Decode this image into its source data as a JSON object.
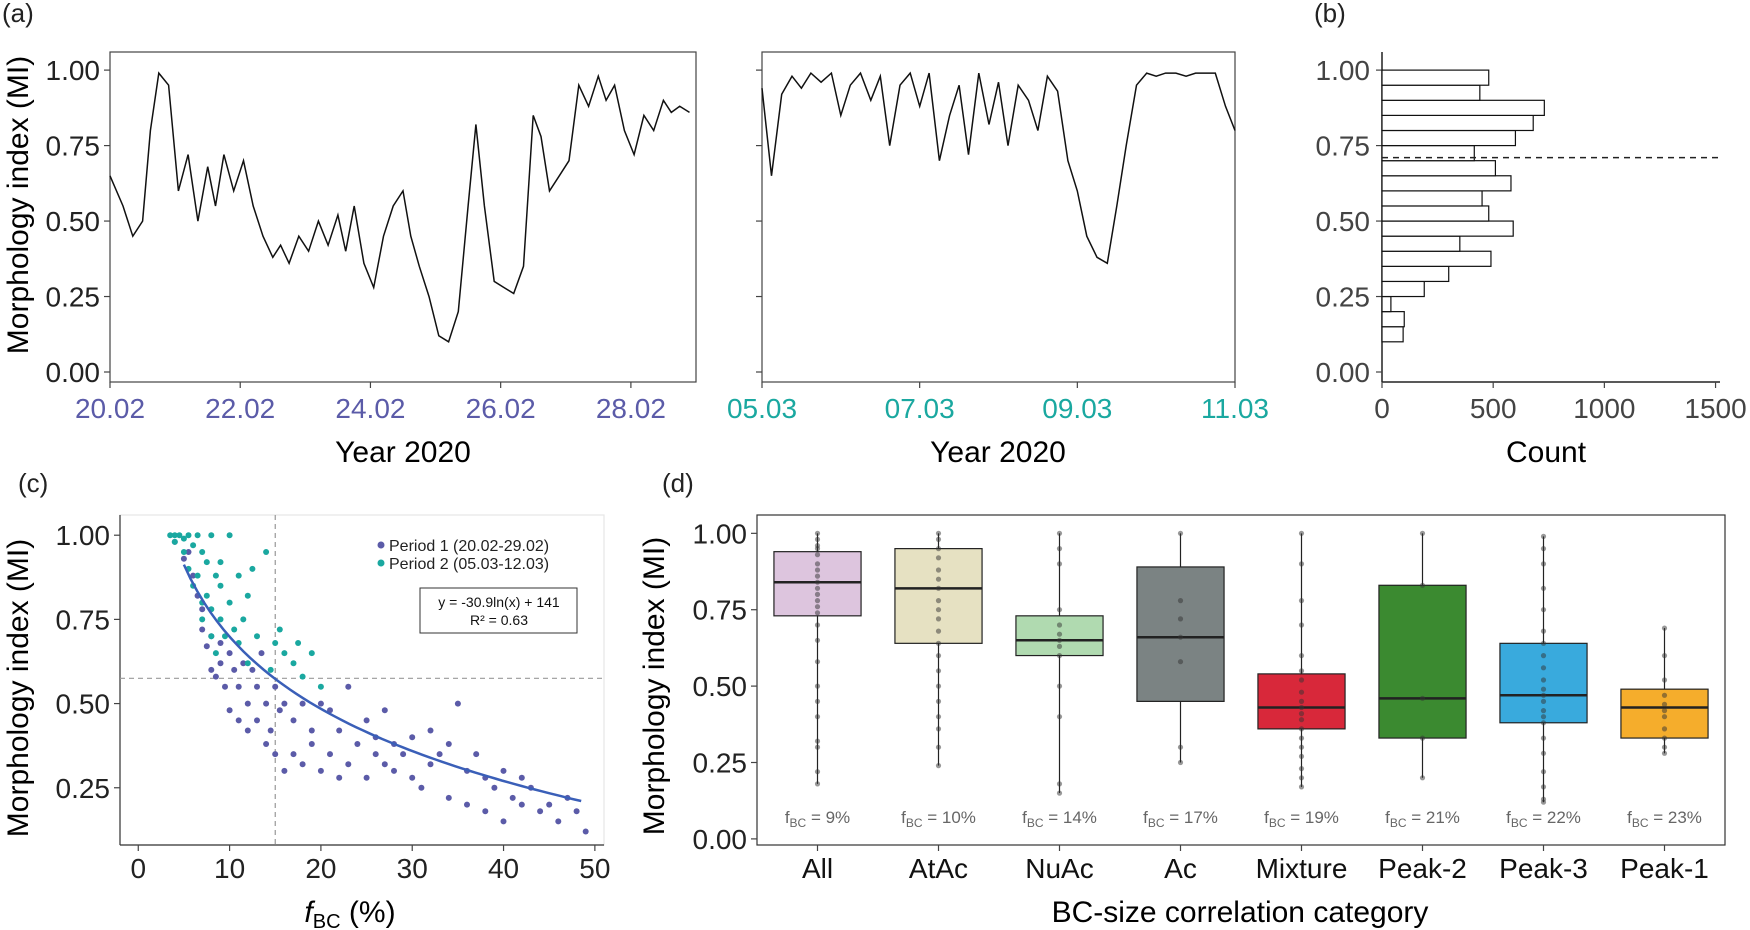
{
  "figure": {
    "panel_a_label": "(a)",
    "panel_b_label": "(b)",
    "panel_c_label": "(c)",
    "panel_d_label": "(d)"
  },
  "colors": {
    "period1": "#5b5ba8",
    "period2": "#1aa8a0",
    "fit": "#3a5fb8",
    "axis": "#000000",
    "tick": "#444444",
    "box_all": "#ddc5de",
    "box_atac": "#e6e1c2",
    "box_nuac": "#b0dab0",
    "box_ac": "#7b8383",
    "box_mixture": "#d8283a",
    "box_peak2": "#3b8a30",
    "box_peak3": "#39aadd",
    "box_peak1": "#f5ad2c"
  },
  "chart_data": [
    {
      "panel": "a-left",
      "type": "line",
      "ylabel": "Morphology index (MI)",
      "xlabel": "Year 2020",
      "ylim": [
        0,
        1.06
      ],
      "yticks": [
        "0.00",
        "0.25",
        "0.50",
        "0.75",
        "1.00"
      ],
      "yticks_values": [
        0,
        0.25,
        0.5,
        0.75,
        1.0
      ],
      "xticks": [
        "20.02",
        "22.02",
        "24.02",
        "26.02",
        "28.02"
      ],
      "xticks_values": [
        0,
        2,
        4,
        6,
        8
      ],
      "xlim": [
        0,
        9
      ],
      "x": [
        0,
        0.2,
        0.35,
        0.5,
        0.62,
        0.75,
        0.9,
        1.05,
        1.2,
        1.35,
        1.5,
        1.62,
        1.75,
        1.9,
        2.05,
        2.2,
        2.35,
        2.5,
        2.62,
        2.75,
        2.9,
        3.05,
        3.2,
        3.35,
        3.5,
        3.62,
        3.75,
        3.9,
        4.05,
        4.2,
        4.35,
        4.5,
        4.62,
        4.75,
        4.9,
        5.05,
        5.2,
        5.35,
        5.5,
        5.62,
        5.75,
        5.9,
        6.05,
        6.2,
        6.35,
        6.5,
        6.62,
        6.75,
        6.9,
        7.05,
        7.2,
        7.35,
        7.5,
        7.62,
        7.75,
        7.9,
        8.05,
        8.2,
        8.35,
        8.5,
        8.62,
        8.75,
        8.9
      ],
      "y": [
        0.65,
        0.55,
        0.45,
        0.5,
        0.8,
        0.99,
        0.95,
        0.6,
        0.72,
        0.5,
        0.68,
        0.55,
        0.72,
        0.6,
        0.7,
        0.55,
        0.45,
        0.38,
        0.42,
        0.36,
        0.45,
        0.4,
        0.5,
        0.42,
        0.52,
        0.4,
        0.55,
        0.36,
        0.28,
        0.45,
        0.55,
        0.6,
        0.45,
        0.35,
        0.25,
        0.12,
        0.1,
        0.2,
        0.55,
        0.82,
        0.55,
        0.3,
        0.28,
        0.26,
        0.35,
        0.85,
        0.78,
        0.6,
        0.65,
        0.7,
        0.95,
        0.88,
        0.98,
        0.9,
        0.95,
        0.8,
        0.72,
        0.85,
        0.8,
        0.9,
        0.86,
        0.88,
        0.86
      ]
    },
    {
      "panel": "a-right",
      "type": "line",
      "xlabel": "Year 2020",
      "xticks": [
        "05.03",
        "07.03",
        "09.03",
        "11.03"
      ],
      "xticks_values": [
        0,
        2,
        4,
        6
      ],
      "xlim": [
        0,
        6
      ],
      "ylim": [
        0,
        1.06
      ],
      "x": [
        0,
        0.12,
        0.25,
        0.38,
        0.5,
        0.62,
        0.75,
        0.88,
        1.0,
        1.12,
        1.25,
        1.38,
        1.5,
        1.62,
        1.75,
        1.88,
        2.0,
        2.12,
        2.25,
        2.38,
        2.5,
        2.62,
        2.75,
        2.88,
        3.0,
        3.12,
        3.25,
        3.38,
        3.5,
        3.62,
        3.75,
        3.88,
        4.0,
        4.12,
        4.25,
        4.38,
        4.5,
        4.62,
        4.75,
        4.88,
        5.0,
        5.12,
        5.25,
        5.38,
        5.5,
        5.62,
        5.75,
        5.88,
        6.0
      ],
      "y": [
        0.94,
        0.65,
        0.92,
        0.98,
        0.94,
        0.99,
        0.96,
        0.99,
        0.85,
        0.95,
        0.99,
        0.9,
        0.98,
        0.75,
        0.95,
        0.99,
        0.88,
        0.99,
        0.7,
        0.85,
        0.95,
        0.72,
        0.99,
        0.82,
        0.96,
        0.75,
        0.95,
        0.9,
        0.8,
        0.98,
        0.93,
        0.7,
        0.6,
        0.45,
        0.38,
        0.36,
        0.55,
        0.75,
        0.95,
        0.99,
        0.98,
        0.99,
        0.99,
        0.98,
        0.99,
        0.99,
        0.99,
        0.88,
        0.8
      ]
    },
    {
      "panel": "b",
      "type": "bar",
      "orientation": "horizontal",
      "xlabel": "Count",
      "xticks": [
        "0",
        "500",
        "1000",
        "1500"
      ],
      "xticks_values": [
        0,
        500,
        1000,
        1500
      ],
      "xlim": [
        0,
        1520
      ],
      "ylim": [
        0,
        1.06
      ],
      "yticks": [
        "0.00",
        "0.25",
        "0.50",
        "0.75",
        "1.00"
      ],
      "yticks_values": [
        0,
        0.25,
        0.5,
        0.75,
        1.0
      ],
      "bin_width": 0.05,
      "bin_centers": [
        0.125,
        0.175,
        0.225,
        0.275,
        0.325,
        0.375,
        0.425,
        0.475,
        0.525,
        0.575,
        0.625,
        0.675,
        0.725,
        0.775,
        0.825,
        0.875,
        0.925,
        0.975
      ],
      "counts": [
        95,
        100,
        40,
        190,
        300,
        490,
        350,
        590,
        480,
        450,
        580,
        510,
        415,
        600,
        680,
        730,
        440,
        480
      ],
      "threshold": 0.71
    },
    {
      "panel": "c",
      "type": "scatter",
      "xlabel": "f",
      "xlabel_sub": "BC",
      "xlabel_unit": " (%)",
      "ylabel": "Morphology index (MI)",
      "xlim": [
        -2,
        51
      ],
      "ylim": [
        0.08,
        1.06
      ],
      "xticks": [
        "0",
        "10",
        "20",
        "30",
        "40",
        "50"
      ],
      "xticks_values": [
        0,
        10,
        20,
        30,
        40,
        50
      ],
      "yticks": [
        "0.25",
        "0.50",
        "0.75",
        "1.00"
      ],
      "yticks_values": [
        0.25,
        0.5,
        0.75,
        1.0
      ],
      "ref_x": 15,
      "ref_y": 0.575,
      "legend": [
        "Period 1 (20.02-29.02)",
        "Period 2 (05.03-12.03)"
      ],
      "fit_equation": "y = -30.9ln(x) + 141",
      "fit_r2": "R² = 0.63",
      "fit": {
        "a": -30.9,
        "b": 141,
        "x_from": 5,
        "x_to": 48.5
      },
      "series": [
        {
          "name": "Period 1 (20.02-29.02)",
          "x": [
            4,
            5,
            5.5,
            6,
            6.5,
            7,
            7,
            7.5,
            8,
            8,
            8.5,
            9,
            9,
            9.5,
            10,
            10,
            10.5,
            11,
            11,
            11.5,
            12,
            12,
            12.5,
            13,
            13,
            13.5,
            14,
            14,
            14.5,
            15,
            15,
            15.5,
            16,
            16,
            17,
            17,
            18,
            18,
            19,
            19,
            20,
            20,
            21,
            21,
            22,
            22,
            23,
            23,
            24,
            25,
            25,
            26,
            26,
            27,
            27,
            28,
            28,
            29,
            30,
            30,
            31,
            32,
            32,
            33,
            34,
            34,
            35,
            36,
            36,
            37,
            38,
            38,
            39,
            40,
            40,
            41,
            42,
            42,
            43,
            44,
            45,
            46,
            47,
            48,
            49
          ],
          "y": [
            0.98,
            0.93,
            0.95,
            0.88,
            0.82,
            0.78,
            0.72,
            0.67,
            0.6,
            0.7,
            0.58,
            0.62,
            0.68,
            0.55,
            0.48,
            0.65,
            0.6,
            0.45,
            0.55,
            0.62,
            0.5,
            0.42,
            0.6,
            0.55,
            0.45,
            0.65,
            0.5,
            0.38,
            0.42,
            0.55,
            0.35,
            0.48,
            0.5,
            0.3,
            0.45,
            0.35,
            0.5,
            0.32,
            0.42,
            0.38,
            0.5,
            0.3,
            0.48,
            0.35,
            0.42,
            0.28,
            0.55,
            0.32,
            0.38,
            0.45,
            0.28,
            0.4,
            0.35,
            0.32,
            0.48,
            0.38,
            0.3,
            0.35,
            0.4,
            0.28,
            0.25,
            0.42,
            0.32,
            0.35,
            0.22,
            0.38,
            0.5,
            0.3,
            0.2,
            0.35,
            0.28,
            0.18,
            0.25,
            0.3,
            0.15,
            0.22,
            0.28,
            0.2,
            0.25,
            0.18,
            0.2,
            0.15,
            0.22,
            0.18,
            0.12
          ]
        },
        {
          "name": "Period 2 (05.03-12.03)",
          "x": [
            3.5,
            4,
            4,
            4.5,
            5,
            5,
            5.5,
            5.5,
            6,
            6,
            6.5,
            6.5,
            7,
            7,
            7,
            7.5,
            7.5,
            8,
            8,
            8,
            8.5,
            8.5,
            9,
            9,
            9,
            9.5,
            10,
            10,
            10.5,
            11,
            11,
            11.5,
            12,
            12,
            12.5,
            13,
            14,
            14.5,
            15,
            15.5,
            16,
            17,
            17.5,
            18,
            19,
            20
          ],
          "y": [
            1.0,
            1.0,
            0.98,
            1.0,
            0.99,
            0.95,
            1.0,
            0.9,
            0.97,
            0.85,
            1.0,
            0.88,
            0.95,
            0.8,
            0.75,
            0.92,
            0.82,
            1.0,
            0.78,
            0.7,
            0.88,
            0.65,
            0.92,
            0.75,
            0.85,
            0.7,
            1.0,
            0.8,
            0.72,
            0.88,
            0.68,
            0.75,
            0.82,
            0.62,
            0.9,
            0.7,
            0.95,
            0.6,
            0.68,
            0.72,
            0.65,
            0.62,
            0.68,
            0.58,
            0.65,
            0.55
          ]
        }
      ]
    },
    {
      "panel": "d",
      "type": "box",
      "xlabel": "BC-size correlation category",
      "ylabel": "Morphology index (MI)",
      "ylim": [
        -0.02,
        1.06
      ],
      "yticks": [
        "0.00",
        "0.25",
        "0.50",
        "0.75",
        "1.00"
      ],
      "yticks_values": [
        0,
        0.25,
        0.5,
        0.75,
        1.0
      ],
      "categories": [
        "All",
        "AtAc",
        "NuAc",
        "Ac",
        "Mixture",
        "Peak-2",
        "Peak-3",
        "Peak-1"
      ],
      "fbc_labels": [
        "9%",
        "10%",
        "14%",
        "17%",
        "19%",
        "21%",
        "22%",
        "23%"
      ],
      "fbc_prefix": "f",
      "fbc_sub": "BC",
      "fbc_eq": " = ",
      "boxes": [
        {
          "min": 0.18,
          "q1": 0.73,
          "median": 0.84,
          "q3": 0.94,
          "max": 1.0,
          "color_key": "box_all",
          "points": [
            1.0,
            0.98,
            0.96,
            0.95,
            0.93,
            0.9,
            0.88,
            0.86,
            0.84,
            0.82,
            0.8,
            0.78,
            0.76,
            0.74,
            0.7,
            0.65,
            0.58,
            0.5,
            0.45,
            0.4,
            0.32,
            0.3,
            0.22,
            0.18
          ]
        },
        {
          "min": 0.24,
          "q1": 0.64,
          "median": 0.82,
          "q3": 0.95,
          "max": 1.0,
          "color_key": "box_atac",
          "points": [
            1.0,
            0.98,
            0.95,
            0.92,
            0.88,
            0.85,
            0.82,
            0.78,
            0.75,
            0.72,
            0.68,
            0.64,
            0.6,
            0.55,
            0.5,
            0.45,
            0.4,
            0.36,
            0.3,
            0.24
          ]
        },
        {
          "min": 0.15,
          "q1": 0.6,
          "median": 0.65,
          "q3": 0.73,
          "max": 1.0,
          "color_key": "box_nuac",
          "points": [
            1.0,
            0.95,
            0.9,
            0.75,
            0.7,
            0.67,
            0.65,
            0.63,
            0.6,
            0.5,
            0.4,
            0.18,
            0.15
          ]
        },
        {
          "min": 0.25,
          "q1": 0.45,
          "median": 0.66,
          "q3": 0.89,
          "max": 1.0,
          "color_key": "box_ac",
          "points": [
            1.0,
            0.78,
            0.72,
            0.66,
            0.58,
            0.3,
            0.25
          ]
        },
        {
          "min": 0.17,
          "q1": 0.36,
          "median": 0.43,
          "q3": 0.54,
          "max": 1.0,
          "color_key": "box_mixture",
          "points": [
            1.0,
            0.9,
            0.78,
            0.7,
            0.6,
            0.55,
            0.52,
            0.48,
            0.45,
            0.43,
            0.41,
            0.39,
            0.36,
            0.33,
            0.3,
            0.27,
            0.23,
            0.2,
            0.17
          ]
        },
        {
          "min": 0.2,
          "q1": 0.33,
          "median": 0.46,
          "q3": 0.83,
          "max": 1.0,
          "color_key": "box_peak2",
          "points": [
            1.0,
            0.83,
            0.46,
            0.33,
            0.2
          ]
        },
        {
          "min": 0.12,
          "q1": 0.38,
          "median": 0.47,
          "q3": 0.64,
          "max": 0.99,
          "color_key": "box_peak3",
          "points": [
            0.99,
            0.95,
            0.9,
            0.82,
            0.75,
            0.68,
            0.64,
            0.6,
            0.56,
            0.52,
            0.49,
            0.47,
            0.45,
            0.42,
            0.4,
            0.38,
            0.33,
            0.28,
            0.22,
            0.17,
            0.13,
            0.12
          ]
        },
        {
          "min": 0.28,
          "q1": 0.33,
          "median": 0.43,
          "q3": 0.49,
          "max": 0.69,
          "color_key": "box_peak1",
          "points": [
            0.69,
            0.6,
            0.52,
            0.47,
            0.44,
            0.42,
            0.4,
            0.36,
            0.33,
            0.3,
            0.28
          ]
        }
      ]
    }
  ]
}
